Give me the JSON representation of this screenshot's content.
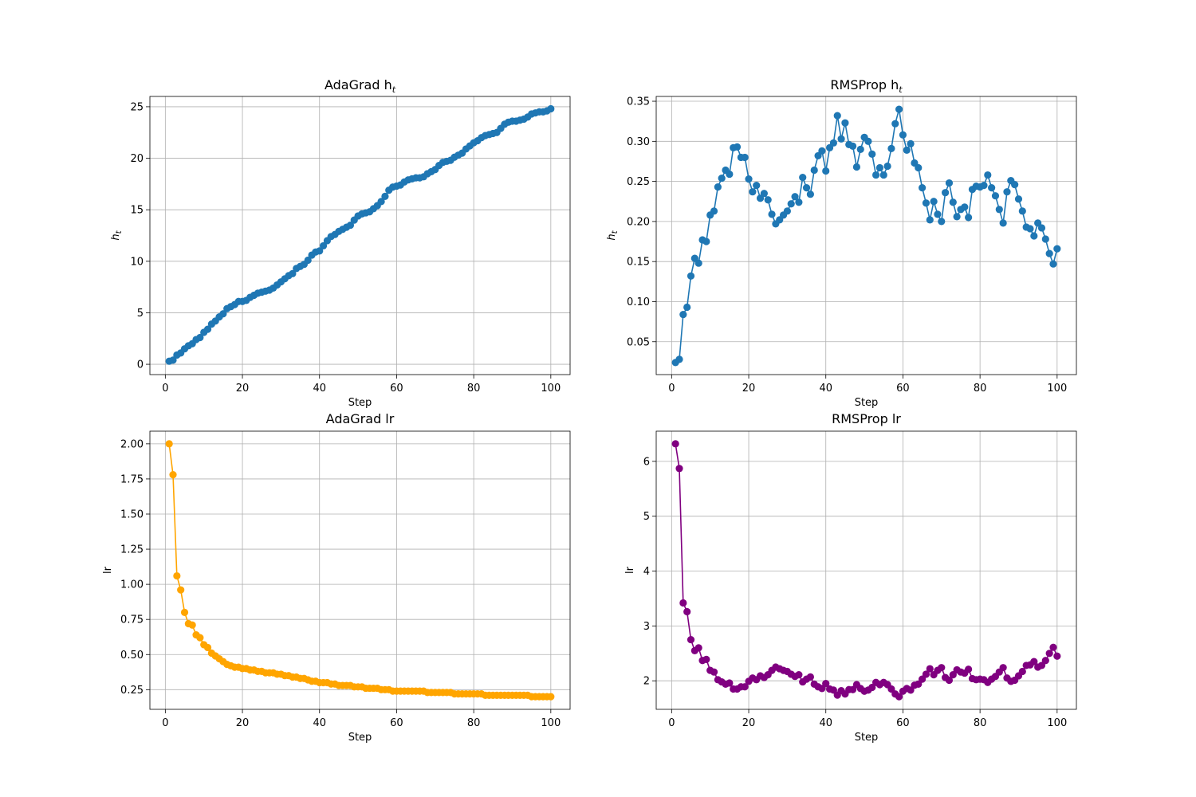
{
  "chart_data": [
    {
      "type": "line",
      "title": "AdaGrad h",
      "title_sub": "t",
      "xlabel": "Step",
      "ylabel": "h",
      "ylabel_sub": "t",
      "color": "#1f77b4",
      "marker": "circle",
      "grid": true,
      "xlim": [
        -4,
        105
      ],
      "ylim": [
        -1.0,
        26.0
      ],
      "xticks": [
        0,
        20,
        40,
        60,
        80,
        100
      ],
      "yticks": [
        0,
        5,
        10,
        15,
        20,
        25
      ],
      "xtick_labels": [
        "0",
        "20",
        "40",
        "60",
        "80",
        "100"
      ],
      "ytick_labels": [
        "0",
        "5",
        "10",
        "15",
        "20",
        "25"
      ],
      "x_start": 1,
      "x_step": 1,
      "values": [
        0.3,
        0.4,
        0.9,
        1.1,
        1.5,
        1.8,
        2.0,
        2.4,
        2.6,
        3.1,
        3.4,
        3.9,
        4.2,
        4.6,
        4.9,
        5.4,
        5.6,
        5.8,
        6.1,
        6.1,
        6.2,
        6.5,
        6.7,
        6.9,
        7.0,
        7.1,
        7.2,
        7.4,
        7.7,
        8.0,
        8.3,
        8.6,
        8.8,
        9.3,
        9.5,
        9.7,
        10.1,
        10.6,
        10.9,
        11.0,
        11.5,
        12.0,
        12.4,
        12.6,
        12.9,
        13.1,
        13.3,
        13.5,
        14.0,
        14.4,
        14.6,
        14.7,
        14.8,
        15.1,
        15.4,
        15.8,
        16.3,
        16.9,
        17.2,
        17.3,
        17.4,
        17.7,
        17.9,
        18.0,
        18.1,
        18.1,
        18.2,
        18.5,
        18.7,
        18.9,
        19.3,
        19.6,
        19.7,
        19.8,
        20.1,
        20.3,
        20.5,
        20.9,
        21.2,
        21.5,
        21.7,
        22.0,
        22.2,
        22.3,
        22.4,
        22.5,
        22.9,
        23.3,
        23.5,
        23.6,
        23.6,
        23.7,
        23.8,
        24.0,
        24.3,
        24.4,
        24.5,
        24.5,
        24.6,
        24.8
      ]
    },
    {
      "type": "line",
      "title": "RMSProp h",
      "title_sub": "t",
      "xlabel": "Step",
      "ylabel": "h",
      "ylabel_sub": "t",
      "color": "#1f77b4",
      "marker": "circle",
      "grid": true,
      "xlim": [
        -4,
        105
      ],
      "ylim": [
        0.009,
        0.356
      ],
      "xticks": [
        0,
        20,
        40,
        60,
        80,
        100
      ],
      "yticks": [
        0.05,
        0.1,
        0.15,
        0.2,
        0.25,
        0.3,
        0.35
      ],
      "xtick_labels": [
        "0",
        "20",
        "40",
        "60",
        "80",
        "100"
      ],
      "ytick_labels": [
        "0.05",
        "0.10",
        "0.15",
        "0.20",
        "0.25",
        "0.30",
        "0.35"
      ],
      "x_start": 1,
      "x_step": 1,
      "values": [
        0.024,
        0.028,
        0.084,
        0.093,
        0.132,
        0.154,
        0.148,
        0.177,
        0.175,
        0.208,
        0.213,
        0.243,
        0.254,
        0.264,
        0.259,
        0.292,
        0.293,
        0.28,
        0.28,
        0.253,
        0.237,
        0.245,
        0.229,
        0.235,
        0.227,
        0.209,
        0.197,
        0.202,
        0.208,
        0.213,
        0.222,
        0.231,
        0.224,
        0.255,
        0.242,
        0.234,
        0.264,
        0.282,
        0.288,
        0.263,
        0.292,
        0.298,
        0.332,
        0.303,
        0.323,
        0.296,
        0.294,
        0.268,
        0.29,
        0.305,
        0.3,
        0.284,
        0.258,
        0.267,
        0.258,
        0.269,
        0.291,
        0.322,
        0.34,
        0.308,
        0.289,
        0.297,
        0.273,
        0.267,
        0.242,
        0.223,
        0.202,
        0.225,
        0.209,
        0.2,
        0.236,
        0.248,
        0.224,
        0.206,
        0.215,
        0.218,
        0.205,
        0.24,
        0.244,
        0.243,
        0.245,
        0.258,
        0.242,
        0.232,
        0.215,
        0.198,
        0.237,
        0.251,
        0.246,
        0.228,
        0.213,
        0.193,
        0.191,
        0.182,
        0.198,
        0.192,
        0.178,
        0.16,
        0.147,
        0.166
      ]
    },
    {
      "type": "line",
      "title": "AdaGrad lr",
      "xlabel": "Step",
      "ylabel": "lr",
      "color": "#ffa500",
      "marker": "circle",
      "grid": true,
      "xlim": [
        -4,
        105
      ],
      "ylim": [
        0.11,
        2.09
      ],
      "xticks": [
        0,
        20,
        40,
        60,
        80,
        100
      ],
      "yticks": [
        0.25,
        0.5,
        0.75,
        1.0,
        1.25,
        1.5,
        1.75,
        2.0
      ],
      "xtick_labels": [
        "0",
        "20",
        "40",
        "60",
        "80",
        "100"
      ],
      "ytick_labels": [
        "0.25",
        "0.50",
        "0.75",
        "1.00",
        "1.25",
        "1.50",
        "1.75",
        "2.00"
      ],
      "x_start": 1,
      "x_step": 1,
      "values": [
        2.0,
        1.78,
        1.06,
        0.96,
        0.8,
        0.72,
        0.71,
        0.64,
        0.62,
        0.57,
        0.55,
        0.51,
        0.49,
        0.47,
        0.45,
        0.43,
        0.42,
        0.41,
        0.41,
        0.4,
        0.4,
        0.39,
        0.39,
        0.38,
        0.38,
        0.37,
        0.37,
        0.37,
        0.36,
        0.36,
        0.35,
        0.35,
        0.34,
        0.34,
        0.33,
        0.33,
        0.32,
        0.31,
        0.31,
        0.3,
        0.3,
        0.3,
        0.29,
        0.29,
        0.28,
        0.28,
        0.28,
        0.28,
        0.27,
        0.27,
        0.27,
        0.26,
        0.26,
        0.26,
        0.26,
        0.25,
        0.25,
        0.25,
        0.24,
        0.24,
        0.24,
        0.24,
        0.24,
        0.24,
        0.24,
        0.24,
        0.24,
        0.23,
        0.23,
        0.23,
        0.23,
        0.23,
        0.23,
        0.23,
        0.22,
        0.22,
        0.22,
        0.22,
        0.22,
        0.22,
        0.22,
        0.22,
        0.21,
        0.21,
        0.21,
        0.21,
        0.21,
        0.21,
        0.21,
        0.21,
        0.21,
        0.21,
        0.21,
        0.21,
        0.2,
        0.2,
        0.2,
        0.2,
        0.2,
        0.2
      ]
    },
    {
      "type": "line",
      "title": "RMSProp lr",
      "xlabel": "Step",
      "ylabel": "lr",
      "color": "#800080",
      "marker": "circle",
      "grid": true,
      "xlim": [
        -4,
        105
      ],
      "ylim": [
        1.48,
        6.55
      ],
      "xticks": [
        0,
        20,
        40,
        60,
        80,
        100
      ],
      "yticks": [
        2,
        3,
        4,
        5,
        6
      ],
      "xtick_labels": [
        "0",
        "20",
        "40",
        "60",
        "80",
        "100"
      ],
      "ytick_labels": [
        "2",
        "3",
        "4",
        "5",
        "6"
      ],
      "x_start": 1,
      "x_step": 1,
      "values": [
        6.32,
        5.87,
        3.42,
        3.26,
        2.75,
        2.55,
        2.6,
        2.37,
        2.39,
        2.19,
        2.16,
        2.02,
        1.98,
        1.94,
        1.96,
        1.85,
        1.85,
        1.89,
        1.89,
        1.99,
        2.05,
        2.02,
        2.09,
        2.06,
        2.11,
        2.19,
        2.25,
        2.22,
        2.19,
        2.17,
        2.12,
        2.08,
        2.11,
        1.98,
        2.03,
        2.07,
        1.94,
        1.89,
        1.86,
        1.95,
        1.85,
        1.83,
        1.74,
        1.82,
        1.76,
        1.84,
        1.84,
        1.93,
        1.86,
        1.81,
        1.83,
        1.88,
        1.97,
        1.93,
        1.97,
        1.93,
        1.85,
        1.76,
        1.71,
        1.81,
        1.86,
        1.83,
        1.92,
        1.94,
        2.03,
        2.12,
        2.22,
        2.11,
        2.19,
        2.24,
        2.06,
        2.01,
        2.11,
        2.2,
        2.16,
        2.14,
        2.21,
        2.04,
        2.02,
        2.03,
        2.02,
        1.97,
        2.03,
        2.08,
        2.16,
        2.24,
        2.05,
        1.99,
        2.01,
        2.09,
        2.17,
        2.28,
        2.29,
        2.35,
        2.25,
        2.28,
        2.37,
        2.5,
        2.61,
        2.45
      ]
    }
  ]
}
